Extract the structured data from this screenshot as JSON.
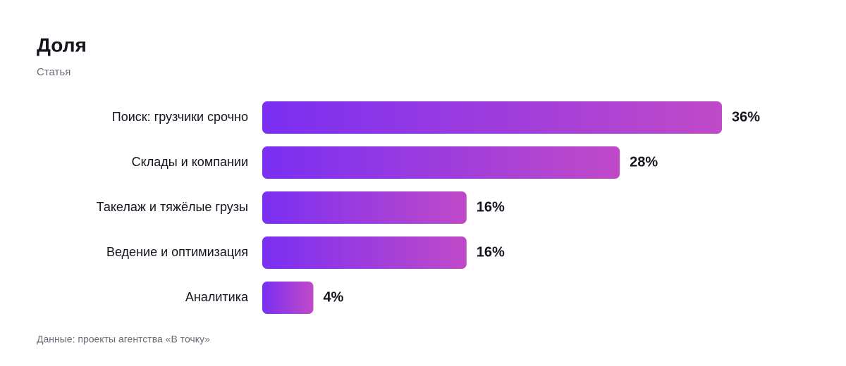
{
  "chart_data": {
    "type": "bar",
    "orientation": "horizontal",
    "title": "Доля",
    "subtitle": "Статья",
    "categories": [
      "Поиск: грузчики срочно",
      "Склады и компании",
      "Такелаж и тяжёлые грузы",
      "Ведение и оптимизация",
      "Аналитика"
    ],
    "values": [
      36,
      28,
      16,
      16,
      4
    ],
    "value_labels": [
      "36%",
      "28%",
      "16%",
      "16%",
      "4%"
    ],
    "gradient": [
      "#7a2ff2",
      "#c04ac8"
    ],
    "source": "Данные: проекты агентства «В точку»"
  }
}
